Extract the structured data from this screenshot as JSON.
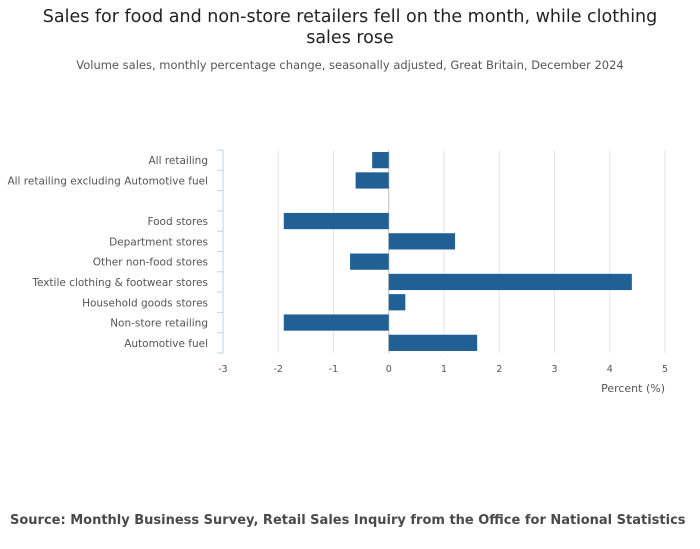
{
  "title": "Sales for food and non-store retailers fell on the month, while clothing sales rose",
  "subtitle": "Volume sales, monthly percentage change, seasonally adjusted, Great Britain, December 2024",
  "source": "Source: Monthly Business Survey, Retail Sales Inquiry from the Office for National Statistics",
  "chart_data": {
    "type": "bar",
    "orientation": "horizontal",
    "categories": [
      "All retailing",
      "All retailing excluding Automotive fuel",
      "",
      "Food stores",
      "Department stores",
      "Other non-food stores",
      "Textile clothing & footwear stores",
      "Household goods stores",
      "Non-store retailing",
      "Automotive fuel"
    ],
    "values": [
      -0.3,
      -0.6,
      null,
      -1.9,
      1.2,
      -0.7,
      4.4,
      0.3,
      -1.9,
      1.6
    ],
    "xlabel": "Percent (%)",
    "ylabel": "",
    "xlim": [
      -3,
      5
    ],
    "xticks": [
      -3,
      -2,
      -1,
      0,
      1,
      2,
      3,
      4,
      5
    ],
    "bar_color": "#206095",
    "grid": true
  }
}
